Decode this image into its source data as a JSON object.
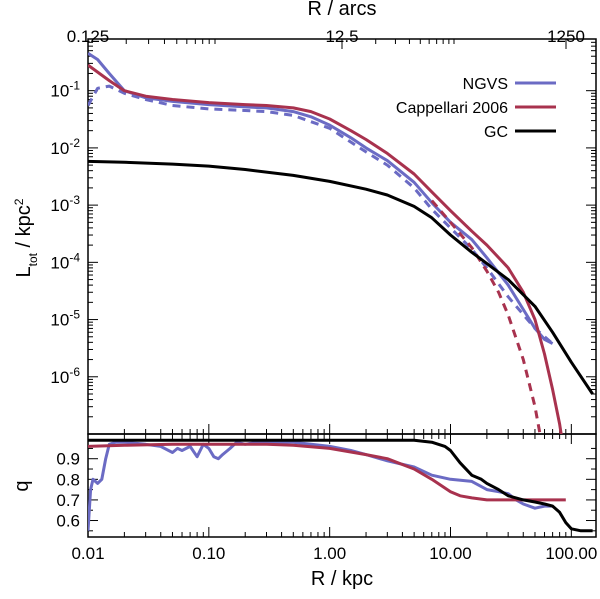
{
  "chart_data": [
    {
      "panel": "top",
      "type": "line",
      "title": "",
      "xlabel_top": "R / arcs",
      "xscale": "log",
      "yscale": "log",
      "xlim": [
        0.01,
        160
      ],
      "ylim": [
        1e-07,
        0.8
      ],
      "top_axis_ticks": [
        "0.125",
        "12.5",
        "1250"
      ],
      "ylabel": {
        "main": "L",
        "sub": "tot",
        "after": " / kpc",
        "sup": "2"
      },
      "y_ticks": [
        {
          "value": 0.1,
          "base": "10",
          "exp": "-1"
        },
        {
          "value": 0.01,
          "base": "10",
          "exp": "-2"
        },
        {
          "value": 0.001,
          "base": "10",
          "exp": "-3"
        },
        {
          "value": 0.0001,
          "base": "10",
          "exp": "-4"
        },
        {
          "value": 1e-05,
          "base": "10",
          "exp": "-5"
        },
        {
          "value": 1e-06,
          "base": "10",
          "exp": "-6"
        }
      ],
      "legend": {
        "location": "top-right",
        "entries": [
          {
            "label": "NGVS",
            "color": "#6b6bc4"
          },
          {
            "label": "Cappellari 2006",
            "color": "#a8324e"
          },
          {
            "label": "GC",
            "color": "#000000"
          }
        ]
      },
      "series": [
        {
          "name": "NGVS",
          "color": "#6b6bc4",
          "style": "solid",
          "x": [
            0.01,
            0.012,
            0.015,
            0.02,
            0.03,
            0.05,
            0.1,
            0.2,
            0.3,
            0.5,
            0.7,
            1.0,
            1.5,
            2,
            3,
            5,
            7,
            10,
            15,
            20,
            30,
            40,
            50,
            60,
            70
          ],
          "y": [
            0.45,
            0.35,
            0.2,
            0.1,
            0.075,
            0.065,
            0.057,
            0.052,
            0.05,
            0.043,
            0.035,
            0.025,
            0.015,
            0.01,
            0.006,
            0.0025,
            0.0011,
            0.0005,
            0.00025,
            0.00012,
            4e-05,
            1.5e-05,
            7e-06,
            4.5e-06,
            3.8e-06
          ]
        },
        {
          "name": "NGVS (dashed)",
          "color": "#6b6bc4",
          "style": "dashed",
          "x": [
            0.01,
            0.012,
            0.015,
            0.02,
            0.03,
            0.05,
            0.1,
            0.2,
            0.3,
            0.5,
            1.0,
            2,
            3,
            5,
            7,
            10,
            15,
            20,
            30,
            50,
            70
          ],
          "y": [
            0.055,
            0.11,
            0.12,
            0.09,
            0.07,
            0.055,
            0.048,
            0.045,
            0.043,
            0.037,
            0.022,
            0.0085,
            0.005,
            0.002,
            0.00085,
            0.0004,
            0.00017,
            8e-05,
            2.5e-05,
            7e-06,
            3.8e-06
          ]
        },
        {
          "name": "Cappellari 2006",
          "color": "#a8324e",
          "style": "solid",
          "x": [
            0.01,
            0.015,
            0.02,
            0.03,
            0.05,
            0.1,
            0.2,
            0.3,
            0.5,
            0.7,
            1.0,
            1.5,
            2,
            3,
            5,
            7,
            10,
            15,
            20,
            30,
            40,
            50,
            60,
            70,
            80,
            90
          ],
          "y": [
            0.28,
            0.15,
            0.1,
            0.08,
            0.07,
            0.062,
            0.057,
            0.055,
            0.05,
            0.043,
            0.032,
            0.02,
            0.014,
            0.008,
            0.0035,
            0.0017,
            0.0008,
            0.00035,
            0.0002,
            8e-05,
            3e-05,
            1e-05,
            2.5e-06,
            6e-07,
            1.5e-07,
            3e-08
          ]
        },
        {
          "name": "Cappellari 2006 (dashed)",
          "color": "#a8324e",
          "style": "dashed",
          "x": [
            7,
            10,
            15,
            20,
            25,
            30,
            40,
            50,
            55,
            60
          ],
          "y": [
            0.0012,
            0.0005,
            0.00018,
            7e-05,
            3e-05,
            1.2e-05,
            2e-06,
            3e-07,
            1e-07,
            4e-08
          ]
        },
        {
          "name": "GC",
          "color": "#000000",
          "style": "solid",
          "x": [
            0.01,
            0.02,
            0.05,
            0.1,
            0.2,
            0.5,
            1.0,
            2,
            3,
            5,
            7,
            10,
            15,
            20,
            30,
            50,
            70,
            100,
            150
          ],
          "y": [
            0.0058,
            0.0056,
            0.0052,
            0.0048,
            0.0042,
            0.0033,
            0.0026,
            0.0019,
            0.0015,
            0.00095,
            0.0006,
            0.0003,
            0.00015,
            9.5e-05,
            5e-05,
            1.7e-05,
            6e-06,
            1.8e-06,
            5e-07
          ]
        }
      ]
    },
    {
      "panel": "bottom",
      "type": "line",
      "xscale": "log",
      "xlim": [
        0.01,
        160
      ],
      "ylim": [
        0.52,
        1.02
      ],
      "xlabel": "R / kpc",
      "ylabel": "q",
      "x_ticks": [
        "0.01",
        "0.10",
        "1.00",
        "10.00",
        "100.00"
      ],
      "y_ticks": [
        "0.6",
        "0.7",
        "0.8",
        "0.9"
      ],
      "series": [
        {
          "name": "NGVS",
          "color": "#6b6bc4",
          "x": [
            0.01,
            0.0105,
            0.011,
            0.012,
            0.013,
            0.014,
            0.015,
            0.017,
            0.02,
            0.03,
            0.04,
            0.05,
            0.055,
            0.06,
            0.07,
            0.08,
            0.09,
            0.1,
            0.11,
            0.12,
            0.13,
            0.15,
            0.17,
            0.2,
            0.25,
            0.3,
            0.4,
            0.5,
            0.7,
            1.0,
            1.5,
            2,
            3,
            5,
            7,
            10,
            15,
            20,
            25,
            30,
            35,
            40,
            50,
            60,
            70
          ],
          "y": [
            0.55,
            0.75,
            0.8,
            0.78,
            0.8,
            0.9,
            0.97,
            0.98,
            0.98,
            0.97,
            0.96,
            0.93,
            0.95,
            0.94,
            0.96,
            0.91,
            0.97,
            0.95,
            0.91,
            0.9,
            0.92,
            0.95,
            0.98,
            0.97,
            0.98,
            0.98,
            0.98,
            0.98,
            0.97,
            0.96,
            0.94,
            0.92,
            0.89,
            0.86,
            0.82,
            0.8,
            0.79,
            0.75,
            0.74,
            0.73,
            0.7,
            0.68,
            0.66,
            0.67,
            0.67
          ]
        },
        {
          "name": "Cappellari 2006",
          "color": "#a8324e",
          "x": [
            0.01,
            0.02,
            0.05,
            0.1,
            0.3,
            0.5,
            1.0,
            2,
            3,
            5,
            7,
            10,
            12,
            15,
            20,
            30,
            50,
            90
          ],
          "y": [
            0.96,
            0.965,
            0.97,
            0.97,
            0.97,
            0.965,
            0.95,
            0.92,
            0.9,
            0.85,
            0.8,
            0.74,
            0.72,
            0.71,
            0.7,
            0.7,
            0.7,
            0.7
          ]
        },
        {
          "name": "GC",
          "color": "#000000",
          "x": [
            0.01,
            0.05,
            0.1,
            0.5,
            1.0,
            3,
            5,
            7,
            9,
            10,
            12,
            15,
            18,
            20,
            25,
            30,
            40,
            50,
            60,
            70,
            80,
            90,
            100,
            120,
            150
          ],
          "y": [
            0.99,
            0.99,
            0.99,
            0.99,
            0.99,
            0.99,
            0.99,
            0.98,
            0.96,
            0.94,
            0.88,
            0.82,
            0.8,
            0.78,
            0.75,
            0.72,
            0.7,
            0.69,
            0.68,
            0.67,
            0.64,
            0.59,
            0.56,
            0.55,
            0.55
          ]
        }
      ]
    }
  ]
}
